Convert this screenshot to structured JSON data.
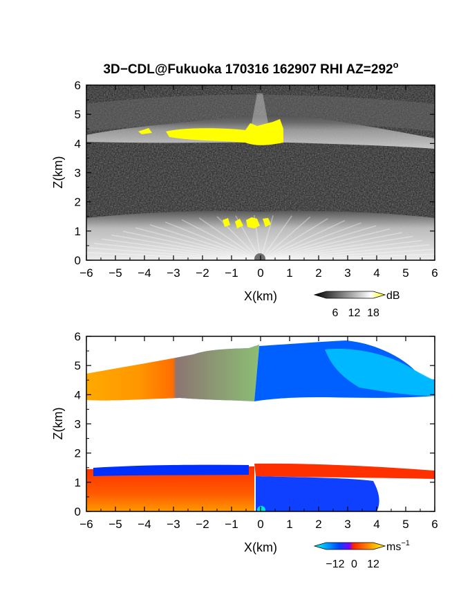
{
  "chart_data": [
    {
      "type": "heatmap",
      "title": "3D−CDL@Fukuoka 170316 162907 RHI AZ=292",
      "title_superscript": "o",
      "variable_label": "dB",
      "xlabel": "X(km)",
      "ylabel": "Z(km)",
      "xlim": [
        -6,
        6
      ],
      "ylim": [
        0,
        6
      ],
      "xticks": [
        -6,
        -5,
        -4,
        -3,
        -2,
        -1,
        0,
        1,
        2,
        3,
        4,
        5,
        6
      ],
      "yticks": [
        0,
        1,
        2,
        3,
        4,
        5,
        6
      ],
      "colorbar": {
        "ticks": [
          6,
          12,
          18
        ],
        "colors": [
          "#000000",
          "#ffffff",
          "#ffff00"
        ]
      },
      "layers": [
        {
          "name": "upper cloud echo",
          "z_range": [
            4.0,
            5.8
          ],
          "x_range": [
            -6,
            6
          ],
          "level_db": 12
        },
        {
          "name": "strong echo (yellow)",
          "z_range": [
            3.9,
            4.6
          ],
          "x_range": [
            -4.0,
            0.8
          ],
          "level_db": 18
        },
        {
          "name": "lower echo",
          "z_range": [
            0,
            1.6
          ],
          "x_range": [
            -6,
            6
          ],
          "level_db": 14
        }
      ]
    },
    {
      "type": "heatmap",
      "variable_label": "ms",
      "variable_superscript": "−1",
      "xlabel": "X(km)",
      "ylabel": "Z(km)",
      "xlim": [
        -6,
        6
      ],
      "ylim": [
        0,
        6
      ],
      "xticks": [
        -6,
        -5,
        -4,
        -3,
        -2,
        -1,
        0,
        1,
        2,
        3,
        4,
        5,
        6
      ],
      "yticks": [
        0,
        1,
        2,
        3,
        4,
        5,
        6
      ],
      "colorbar": {
        "ticks": [
          -12,
          0,
          12
        ],
        "colors": [
          "#00ffff",
          "#0044ff",
          "#ff2200",
          "#ffff00"
        ]
      },
      "regions": [
        {
          "name": "upper layer away",
          "z_range": [
            4.0,
            5.2
          ],
          "x_range": [
            -6,
            -0.1
          ],
          "velocity": 8
        },
        {
          "name": "upper layer toward",
          "z_range": [
            4.1,
            5.8
          ],
          "x_range": [
            -0.1,
            6
          ],
          "velocity": -8
        },
        {
          "name": "lower blue band",
          "z_range": [
            1.3,
            1.6
          ],
          "x_range": [
            -5.8,
            -0.3
          ],
          "velocity": -6
        },
        {
          "name": "lower red layer",
          "z_range": [
            0,
            1.3
          ],
          "x_range": [
            -6,
            0
          ],
          "velocity": 6
        },
        {
          "name": "lower red band",
          "z_range": [
            1.0,
            1.5
          ],
          "x_range": [
            0,
            6
          ],
          "velocity": 5
        },
        {
          "name": "lower blue core",
          "z_range": [
            0,
            1.0
          ],
          "x_range": [
            0,
            3.5
          ],
          "velocity": -6
        }
      ]
    }
  ]
}
